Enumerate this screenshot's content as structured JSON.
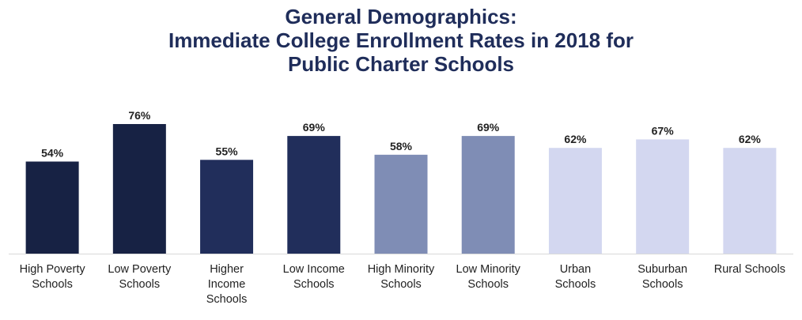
{
  "title_lines": [
    "General Demographics:",
    "Immediate College Enrollment Rates in 2018 for",
    "Public Charter Schools"
  ],
  "colors": {
    "title": "#1f2d5a",
    "poverty": "#172244",
    "income": "#212e5b",
    "minority": "#7f8db5",
    "locale": "#d3d7f0",
    "axis": "#d9d9d9",
    "label": "#222222"
  },
  "chart_data": {
    "type": "bar",
    "title": "General Demographics: Immediate College Enrollment Rates in 2018 for Public Charter Schools",
    "xlabel": "",
    "ylabel": "",
    "ylim": [
      0,
      100
    ],
    "grid": false,
    "categories": [
      "High Poverty Schools",
      "Low Poverty Schools",
      "Higher Income Schools",
      "Low Income Schools",
      "High Minority Schools",
      "Low Minority Schools",
      "Urban Schools",
      "Suburban Schools",
      "Rural Schools"
    ],
    "category_label_lines": [
      [
        "High Poverty",
        "Schools"
      ],
      [
        "Low Poverty",
        "Schools"
      ],
      [
        "Higher",
        "Income",
        "Schools"
      ],
      [
        "Low Income",
        "Schools"
      ],
      [
        "High Minority",
        "Schools"
      ],
      [
        "Low Minority",
        "Schools"
      ],
      [
        "Urban",
        "Schools"
      ],
      [
        "Suburban",
        "Schools"
      ],
      [
        "Rural Schools"
      ]
    ],
    "values": [
      54,
      76,
      55,
      69,
      58,
      69,
      62,
      67,
      62
    ],
    "data_labels": [
      "54%",
      "76%",
      "55%",
      "69%",
      "58%",
      "69%",
      "62%",
      "67%",
      "62%"
    ],
    "color_groups": [
      "poverty",
      "poverty",
      "income",
      "income",
      "minority",
      "minority",
      "locale",
      "locale",
      "locale"
    ]
  }
}
